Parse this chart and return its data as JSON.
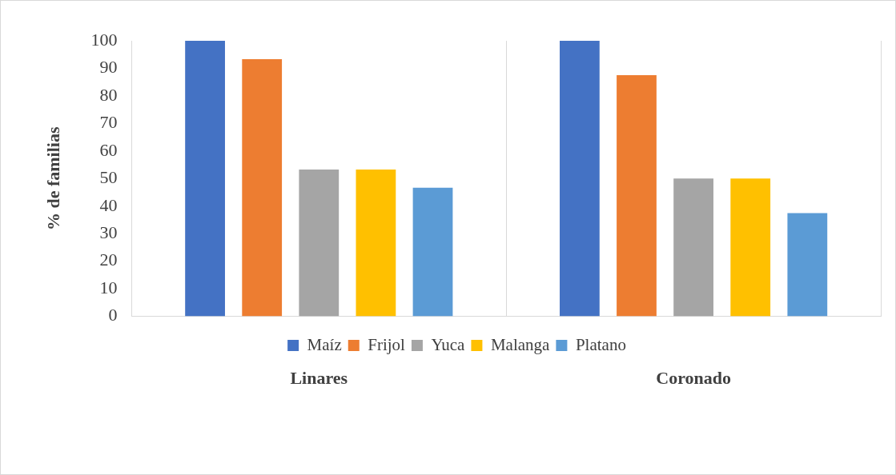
{
  "chart_data": {
    "type": "bar",
    "ylabel": "% de familias",
    "categories": [
      "Linares",
      "Coronado"
    ],
    "series": [
      {
        "name": "Maíz",
        "color": "#4472c4",
        "values": [
          100,
          100
        ]
      },
      {
        "name": "Frijol",
        "color": "#ed7d31",
        "values": [
          93.3,
          87.5
        ]
      },
      {
        "name": "Yuca",
        "color": "#a5a5a5",
        "values": [
          53.3,
          50
        ]
      },
      {
        "name": "Malanga",
        "color": "#ffc000",
        "values": [
          53.3,
          50
        ]
      },
      {
        "name": "Platano",
        "color": "#5b9bd5",
        "values": [
          46.7,
          37.5
        ]
      }
    ],
    "ylim": [
      0,
      100
    ],
    "yticks": [
      0,
      10,
      20,
      30,
      40,
      50,
      60,
      70,
      80,
      90,
      100
    ],
    "grid": "x",
    "legend": "bottom"
  }
}
